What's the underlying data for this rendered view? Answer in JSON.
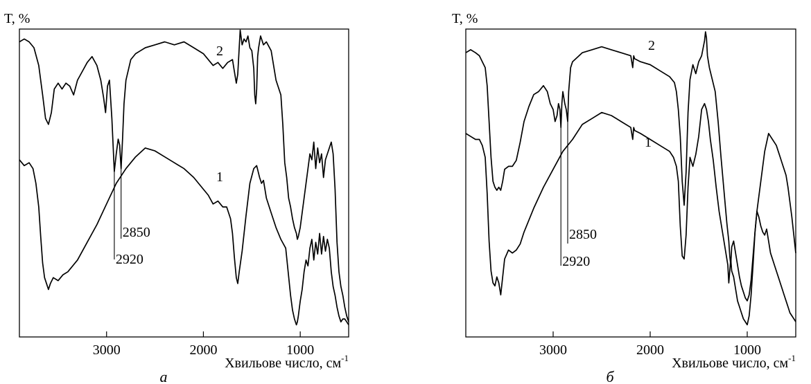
{
  "chart_data": [
    {
      "type": "line",
      "panel_label": "а",
      "ylabel": "T, %",
      "xlabel": "Хвильове число, см",
      "xlabel_sup": "-1",
      "xlim": [
        3900,
        500
      ],
      "xticks": [
        3000,
        2000,
        1000
      ],
      "xtick_labels": [
        "3000",
        "2000",
        "1000"
      ],
      "ylim": [
        0,
        100
      ],
      "grid": false,
      "legend": "none",
      "annotations": [
        {
          "text": "2920",
          "x": 2920
        },
        {
          "text": "2850",
          "x": 2850
        }
      ],
      "series": [
        {
          "name": "2",
          "x": [
            3900,
            3850,
            3800,
            3750,
            3700,
            3660,
            3630,
            3600,
            3570,
            3540,
            3500,
            3460,
            3420,
            3380,
            3340,
            3300,
            3250,
            3200,
            3150,
            3100,
            3060,
            3030,
            3010,
            2990,
            2970,
            2945,
            2920,
            2900,
            2880,
            2865,
            2850,
            2835,
            2820,
            2800,
            2750,
            2700,
            2650,
            2600,
            2500,
            2400,
            2300,
            2200,
            2100,
            2000,
            1950,
            1900,
            1850,
            1800,
            1750,
            1700,
            1680,
            1660,
            1645,
            1630,
            1620,
            1600,
            1580,
            1560,
            1540,
            1520,
            1500,
            1480,
            1470,
            1460,
            1450,
            1440,
            1430,
            1410,
            1380,
            1350,
            1300,
            1250,
            1200,
            1180,
            1160,
            1140,
            1120,
            1100,
            1080,
            1060,
            1040,
            1030,
            1020,
            1000,
            980,
            960,
            940,
            920,
            900,
            880,
            860,
            840,
            820,
            800,
            780,
            760,
            740,
            720,
            700,
            680,
            660,
            640,
            620,
            600,
            580,
            560,
            540,
            520,
            500
          ],
          "y": [
            98,
            99,
            98,
            96,
            90,
            80,
            72,
            70,
            74,
            82,
            84,
            82,
            84,
            83,
            80,
            85,
            88,
            91,
            93,
            90,
            85,
            79,
            74,
            83,
            85,
            72,
            54,
            60,
            65,
            63,
            55,
            65,
            77,
            85,
            92,
            94,
            95,
            96,
            97,
            98,
            97,
            98,
            96,
            94,
            92,
            90,
            91,
            89,
            91,
            92,
            88,
            84,
            87,
            96,
            102,
            97,
            99,
            98,
            100,
            96,
            95,
            89,
            80,
            77,
            82,
            93,
            96,
            100,
            97,
            98,
            95,
            85,
            80,
            70,
            57,
            52,
            45,
            42,
            38,
            35,
            33,
            31,
            32,
            35,
            40,
            45,
            50,
            55,
            60,
            58,
            64,
            55,
            62,
            57,
            60,
            52,
            58,
            60,
            62,
            64,
            60,
            48,
            30,
            20,
            15,
            12,
            8,
            5,
            3
          ]
        },
        {
          "name": "1",
          "x": [
            3900,
            3850,
            3800,
            3760,
            3730,
            3700,
            3680,
            3660,
            3640,
            3620,
            3600,
            3580,
            3550,
            3500,
            3450,
            3400,
            3300,
            3200,
            3100,
            3000,
            2900,
            2800,
            2700,
            2600,
            2500,
            2400,
            2300,
            2200,
            2100,
            2000,
            1950,
            1900,
            1850,
            1800,
            1760,
            1720,
            1700,
            1680,
            1660,
            1645,
            1630,
            1600,
            1560,
            1520,
            1480,
            1450,
            1420,
            1400,
            1380,
            1350,
            1300,
            1250,
            1200,
            1150,
            1100,
            1080,
            1060,
            1040,
            1030,
            1020,
            1000,
            980,
            960,
            940,
            920,
            900,
            880,
            860,
            840,
            820,
            800,
            780,
            760,
            740,
            720,
            700,
            680,
            660,
            640,
            620,
            600,
            580,
            560,
            540,
            520,
            500
          ],
          "y": [
            58,
            56,
            57,
            55,
            50,
            42,
            32,
            23,
            18,
            16,
            14,
            16,
            18,
            17,
            19,
            20,
            24,
            30,
            36,
            43,
            50,
            55,
            59,
            62,
            61,
            59,
            57,
            55,
            52,
            48,
            46,
            43,
            44,
            42,
            42,
            38,
            33,
            25,
            18,
            16,
            20,
            27,
            39,
            50,
            55,
            56,
            52,
            50,
            51,
            45,
            40,
            35,
            31,
            28,
            12,
            7,
            4,
            2,
            3,
            5,
            10,
            14,
            20,
            24,
            22,
            28,
            31,
            24,
            30,
            26,
            33,
            26,
            32,
            27,
            31,
            28,
            20,
            15,
            12,
            8,
            5,
            3,
            4,
            4,
            3,
            2
          ]
        }
      ]
    },
    {
      "type": "line",
      "panel_label": "б",
      "ylabel": "T, %",
      "xlabel": "Хвильове число, см",
      "xlabel_sup": "-1",
      "xlim": [
        3900,
        500
      ],
      "xticks": [
        3000,
        2000,
        1000
      ],
      "xtick_labels": [
        "3000",
        "2000",
        "1000"
      ],
      "ylim": [
        0,
        100
      ],
      "grid": false,
      "legend": "none",
      "annotations": [
        {
          "text": "2920",
          "x": 2920
        },
        {
          "text": "2850",
          "x": 2850
        }
      ],
      "series": [
        {
          "name": "2",
          "x": [
            3900,
            3850,
            3800,
            3760,
            3730,
            3700,
            3680,
            3660,
            3640,
            3620,
            3600,
            3580,
            3560,
            3540,
            3520,
            3500,
            3460,
            3420,
            3380,
            3340,
            3300,
            3250,
            3200,
            3150,
            3100,
            3060,
            3030,
            3000,
            2980,
            2960,
            2945,
            2930,
            2920,
            2910,
            2900,
            2890,
            2880,
            2865,
            2850,
            2840,
            2820,
            2800,
            2700,
            2600,
            2500,
            2400,
            2300,
            2200,
            2180,
            2170,
            2160,
            2100,
            2000,
            1900,
            1800,
            1750,
            1730,
            1710,
            1690,
            1670,
            1650,
            1630,
            1610,
            1590,
            1560,
            1530,
            1500,
            1470,
            1440,
            1430,
            1420,
            1410,
            1390,
            1360,
            1330,
            1300,
            1270,
            1240,
            1210,
            1190,
            1180,
            1170,
            1160,
            1140,
            1120,
            1100,
            1080,
            1060,
            1040,
            1020,
            1000,
            980,
            960,
            940,
            920,
            900,
            880,
            860,
            840,
            820,
            800,
            780,
            760,
            740,
            720,
            700,
            680,
            660,
            640,
            620,
            600,
            580,
            560,
            540,
            520,
            500
          ],
          "y": [
            93,
            94,
            93,
            92,
            90,
            88,
            82,
            70,
            58,
            50,
            48,
            47,
            48,
            47,
            50,
            54,
            55,
            55,
            57,
            63,
            70,
            75,
            79,
            80,
            82,
            80,
            76,
            74,
            70,
            72,
            76,
            74,
            68,
            76,
            80,
            78,
            76,
            74,
            70,
            80,
            88,
            90,
            93,
            94,
            95,
            94,
            93,
            92,
            88,
            92,
            91,
            90,
            89,
            87,
            85,
            83,
            80,
            74,
            65,
            50,
            42,
            53,
            73,
            84,
            89,
            86,
            90,
            92,
            97,
            100,
            98,
            92,
            88,
            84,
            80,
            70,
            58,
            47,
            36,
            30,
            25,
            22,
            28,
            30,
            26,
            22,
            18,
            15,
            13,
            11,
            10,
            12,
            17,
            25,
            33,
            40,
            45,
            50,
            55,
            60,
            63,
            66,
            65,
            64,
            63,
            62,
            60,
            58,
            56,
            54,
            52,
            48,
            43,
            38,
            32,
            26
          ]
        },
        {
          "name": "1",
          "x": [
            3900,
            3850,
            3800,
            3760,
            3730,
            3700,
            3680,
            3660,
            3640,
            3620,
            3600,
            3580,
            3560,
            3540,
            3520,
            3500,
            3460,
            3420,
            3380,
            3340,
            3300,
            3250,
            3200,
            3100,
            3000,
            2900,
            2800,
            2700,
            2600,
            2500,
            2400,
            2300,
            2200,
            2180,
            2170,
            2160,
            2100,
            2000,
            1900,
            1800,
            1760,
            1730,
            1710,
            1690,
            1670,
            1650,
            1630,
            1610,
            1590,
            1560,
            1530,
            1500,
            1470,
            1440,
            1420,
            1400,
            1380,
            1350,
            1320,
            1290,
            1260,
            1230,
            1200,
            1190,
            1180,
            1170,
            1160,
            1140,
            1120,
            1100,
            1080,
            1060,
            1040,
            1020,
            1000,
            980,
            960,
            940,
            920,
            900,
            880,
            860,
            840,
            820,
            800,
            780,
            760,
            740,
            720,
            700,
            680,
            660,
            640,
            620,
            600,
            580,
            560,
            540,
            520,
            500
          ],
          "y": [
            66,
            65,
            64,
            64,
            62,
            58,
            46,
            30,
            20,
            16,
            15,
            18,
            16,
            12,
            18,
            24,
            27,
            26,
            27,
            29,
            33,
            37,
            41,
            48,
            54,
            60,
            64,
            69,
            71,
            73,
            72,
            70,
            68,
            64,
            68,
            67,
            66,
            64,
            62,
            60,
            58,
            55,
            50,
            35,
            25,
            24,
            32,
            48,
            58,
            55,
            59,
            65,
            74,
            76,
            74,
            70,
            64,
            57,
            48,
            40,
            34,
            28,
            22,
            16,
            20,
            24,
            20,
            18,
            14,
            10,
            8,
            6,
            4,
            3,
            2,
            5,
            12,
            22,
            33,
            40,
            38,
            35,
            33,
            32,
            34,
            30,
            26,
            24,
            22,
            20,
            18,
            16,
            14,
            12,
            10,
            8,
            6,
            5,
            4,
            3
          ]
        }
      ]
    }
  ]
}
